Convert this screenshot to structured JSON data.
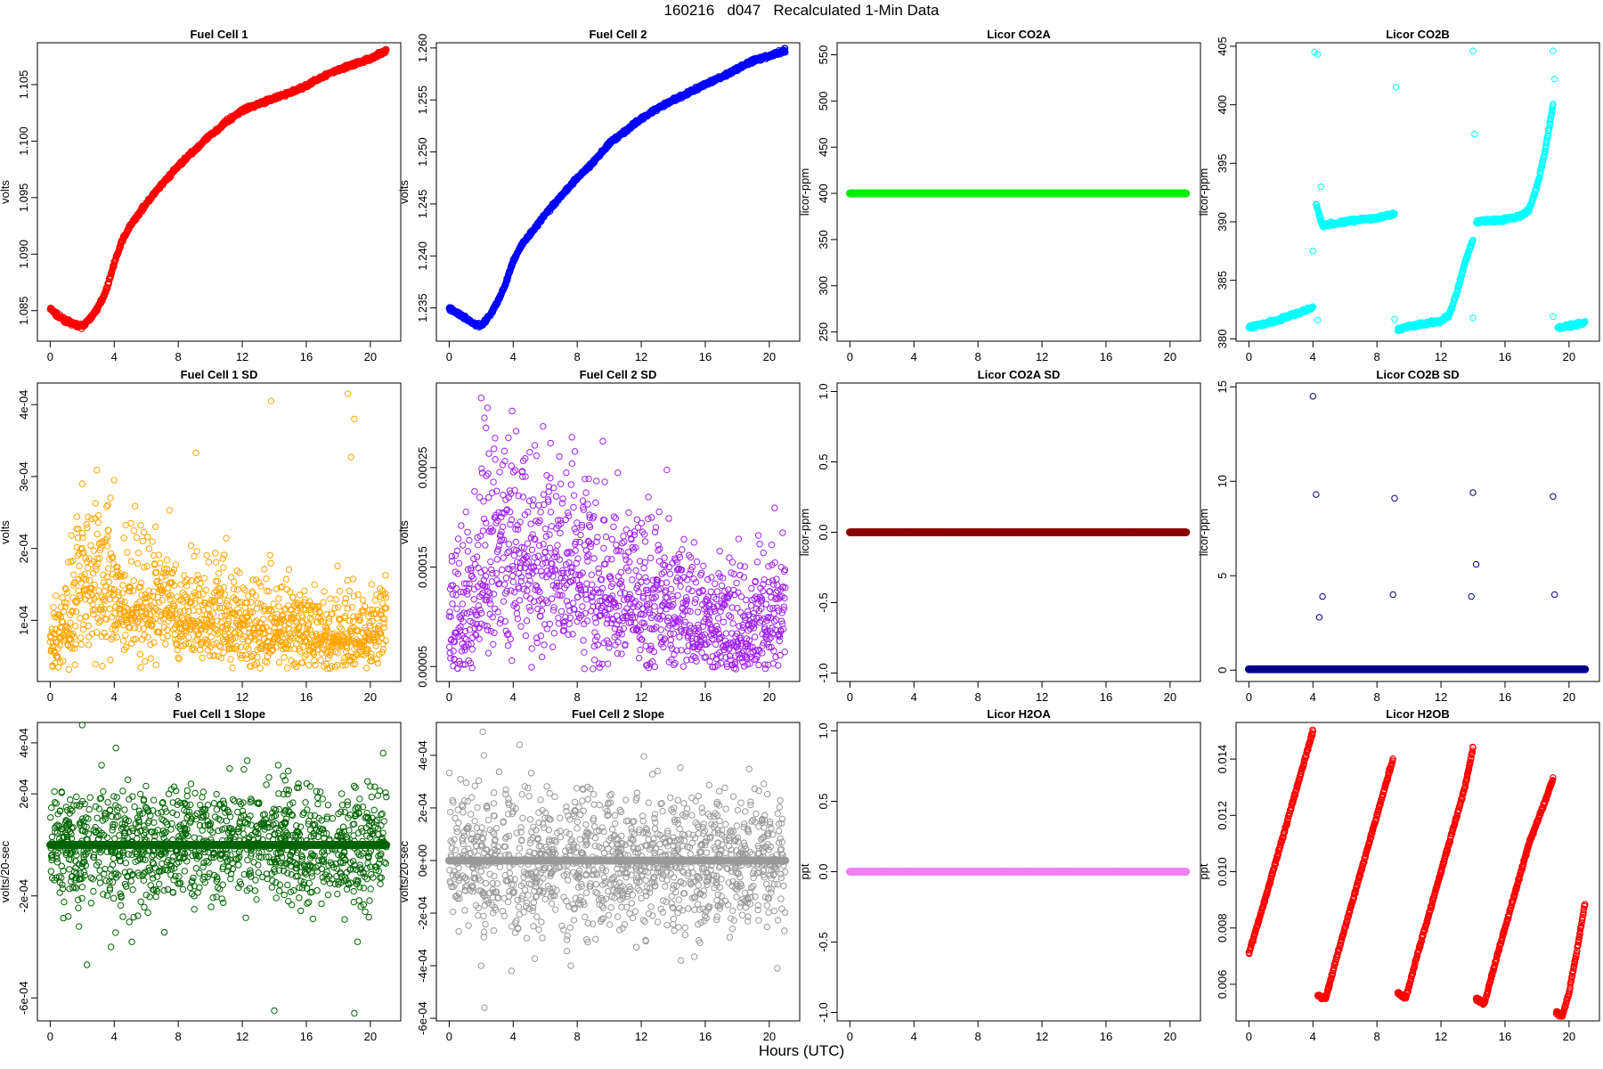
{
  "figure": {
    "title": "160216   d047   Recalculated 1-Min Data",
    "xlabel": "Hours (UTC)"
  },
  "chart_data": [
    {
      "type": "scatter",
      "title": "Fuel Cell 1",
      "ylabel": "volts",
      "color": "#ff0000",
      "xlim": [
        -0.8,
        21.9
      ],
      "ylim": [
        1.0823,
        1.1087
      ],
      "xticks": [
        0,
        4,
        8,
        12,
        16,
        20
      ],
      "yticks": [
        "1.085",
        "1.090",
        "1.095",
        "1.100",
        "1.105"
      ],
      "ytick_values": [
        1.085,
        1.09,
        1.095,
        1.1,
        1.105
      ],
      "series": [
        {
          "x": [
            0,
            0.5,
            1,
            1.5,
            2,
            2.5,
            3,
            3.5,
            4,
            4.5,
            5,
            6,
            7,
            8,
            9,
            10,
            11,
            12,
            13,
            14,
            15,
            16,
            17,
            18,
            19,
            20,
            21
          ],
          "y": [
            1.0852,
            1.0845,
            1.0841,
            1.0838,
            1.0836,
            1.0843,
            1.0853,
            1.0868,
            1.0892,
            1.0912,
            1.0925,
            1.0945,
            1.0962,
            1.0978,
            1.0992,
            1.1005,
            1.1017,
            1.1027,
            1.1033,
            1.1038,
            1.1043,
            1.1049,
            1.1057,
            1.1063,
            1.1068,
            1.1073,
            1.108
          ]
        }
      ]
    },
    {
      "type": "scatter",
      "title": "Fuel Cell 2",
      "ylabel": "volts",
      "color": "#0000ff",
      "xlim": [
        -0.8,
        21.9
      ],
      "ylim": [
        1.2318,
        1.2605
      ],
      "xticks": [
        0,
        4,
        8,
        12,
        16,
        20
      ],
      "yticks": [
        "1.235",
        "1.240",
        "1.245",
        "1.250",
        "1.255",
        "1.260"
      ],
      "ytick_values": [
        1.235,
        1.24,
        1.245,
        1.25,
        1.255,
        1.26
      ],
      "series": [
        {
          "x": [
            0,
            0.5,
            1,
            1.5,
            2,
            2.5,
            3,
            3.5,
            4,
            4.5,
            5,
            6,
            7,
            8,
            9,
            10,
            11,
            12,
            13,
            14,
            15,
            16,
            17,
            18,
            19,
            20,
            21
          ],
          "y": [
            1.235,
            1.2345,
            1.234,
            1.2335,
            1.2333,
            1.2342,
            1.2355,
            1.2372,
            1.2395,
            1.241,
            1.242,
            1.244,
            1.2458,
            1.2475,
            1.249,
            1.2508,
            1.252,
            1.2532,
            1.2542,
            1.255,
            1.2557,
            1.2565,
            1.2572,
            1.258,
            1.2588,
            1.2592,
            1.2598
          ]
        }
      ]
    },
    {
      "type": "scatter",
      "title": "Licor CO2A",
      "ylabel": "licor-ppm",
      "color": "#00ee00",
      "xlim": [
        -0.8,
        21.9
      ],
      "ylim": [
        240,
        563
      ],
      "xticks": [
        0,
        4,
        8,
        12,
        16,
        20
      ],
      "yticks": [
        "250",
        "300",
        "350",
        "400",
        "450",
        "500",
        "550"
      ],
      "ytick_values": [
        250,
        300,
        350,
        400,
        450,
        500,
        550
      ],
      "series": [
        {
          "x": [
            0,
            21
          ],
          "y": [
            400,
            400
          ]
        }
      ]
    },
    {
      "type": "scatter",
      "title": "Licor CO2B",
      "ylabel": "licor-ppm",
      "color": "#00ffff",
      "xlim": [
        -0.8,
        21.9
      ],
      "ylim": [
        379.8,
        405.3
      ],
      "xticks": [
        0,
        4,
        8,
        12,
        16,
        20
      ],
      "yticks": [
        "380",
        "385",
        "390",
        "395",
        "400",
        "405"
      ],
      "ytick_values": [
        380,
        385,
        390,
        395,
        400,
        405
      ],
      "series": [
        {
          "name": "",
          "x": [
            0,
            1,
            2,
            3,
            4
          ],
          "y": [
            381,
            381.3,
            381.7,
            382.2,
            382.7
          ]
        },
        {
          "name": "",
          "x": [
            4.2,
            4.6,
            5,
            6,
            7,
            8,
            9.1
          ],
          "y": [
            391.5,
            389.7,
            389.8,
            390,
            390.2,
            390.3,
            390.7
          ]
        },
        {
          "name": "",
          "x": [
            9.3,
            10,
            11,
            12,
            12.5,
            13,
            13.5,
            14
          ],
          "y": [
            380.8,
            381.1,
            381.3,
            381.5,
            382,
            384,
            386.5,
            388.5
          ]
        },
        {
          "name": "",
          "x": [
            14.2,
            15,
            16,
            17,
            17.5,
            18,
            18.5,
            19
          ],
          "y": [
            390,
            390.1,
            390.2,
            390.5,
            391,
            393,
            396,
            400
          ]
        },
        {
          "name": "",
          "x": [
            19.3,
            20,
            21
          ],
          "y": [
            380.9,
            381.1,
            381.4
          ]
        },
        {
          "name": "",
          "x": [
            4.1,
            4.3,
            4.5,
            4.0,
            9.2,
            14,
            14.1,
            19,
            19.1,
            4.3,
            9.1,
            14.0,
            19.0
          ],
          "y": [
            404.5,
            404.3,
            393,
            387.5,
            401.5,
            404.6,
            397.5,
            404.6,
            402.2,
            381.6,
            381.7,
            381.8,
            381.9
          ]
        }
      ]
    },
    {
      "type": "scatter",
      "title": "Fuel Cell 1 SD",
      "ylabel": "volts",
      "color": "#ffa500",
      "xlim": [
        -0.8,
        21.9
      ],
      "ylim": [
        1.5e-05,
        0.00043
      ],
      "xticks": [
        0,
        4,
        8,
        12,
        16,
        20
      ],
      "yticks": [
        "1e-04",
        "2e-04",
        "3e-04",
        "4e-04"
      ],
      "ytick_values": [
        0.0001,
        0.0002,
        0.0003,
        0.0004
      ],
      "series": [
        {
          "x": [
            0,
            1,
            2,
            3,
            4,
            6,
            8,
            10,
            12,
            14,
            16,
            18,
            19,
            20,
            21
          ],
          "y": [
            6e-05,
            9e-05,
            0.00015,
            0.00014,
            0.00013,
            0.00012,
            0.00011,
            0.0001,
            9e-05,
            9e-05,
            8e-05,
            8e-05,
            7e-05,
            8e-05,
            9e-05
          ]
        },
        {
          "name": "",
          "x": [
            2.0,
            4.0,
            9.1,
            13.8,
            18.6,
            19.0,
            18.8
          ],
          "y": [
            0.00029,
            0.000295,
            0.000333,
            0.000405,
            0.000415,
            0.00038,
            0.000327
          ]
        }
      ]
    },
    {
      "type": "scatter",
      "title": "Fuel Cell 2 SD",
      "ylabel": "volts",
      "color": "#a020f0",
      "xlim": [
        -0.8,
        21.9
      ],
      "ylim": [
        3.5e-05,
        0.000335
      ],
      "xticks": [
        0,
        4,
        8,
        12,
        16,
        20
      ],
      "yticks": [
        "0.00005",
        "0.00015",
        "0.00025"
      ],
      "ytick_values": [
        5e-05,
        0.00015,
        0.00025
      ],
      "series": [
        {
          "x": [
            0,
            1,
            2,
            3,
            4,
            6,
            8,
            10,
            12,
            14,
            16,
            18,
            20,
            21
          ],
          "y": [
            8e-05,
            0.0001,
            0.00013,
            0.00015,
            0.00016,
            0.00015,
            0.00014,
            0.00012,
            0.00011,
            0.0001,
            9e-05,
            8e-05,
            9e-05,
            0.0001
          ]
        },
        {
          "name": "",
          "x": [
            2.0,
            2.2,
            2.4,
            3.7,
            2.3
          ],
          "y": [
            0.00032,
            0.0003,
            0.00031,
            0.00028,
            0.00029
          ]
        }
      ]
    },
    {
      "type": "scatter",
      "title": "Licor CO2A SD",
      "ylabel": "licor-ppm",
      "color": "#8b0000",
      "xlim": [
        -0.8,
        21.9
      ],
      "ylim": [
        -1.06,
        1.06
      ],
      "xticks": [
        0,
        4,
        8,
        12,
        16,
        20
      ],
      "yticks": [
        "-1.0",
        "-0.5",
        "0.0",
        "0.5",
        "1.0"
      ],
      "ytick_values": [
        -1,
        -0.5,
        0,
        0.5,
        1
      ],
      "series": [
        {
          "x": [
            0,
            21
          ],
          "y": [
            0,
            0
          ]
        }
      ]
    },
    {
      "type": "scatter",
      "title": "Licor CO2B SD",
      "ylabel": "licor-ppm",
      "color": "#00008b",
      "xlim": [
        -0.8,
        21.9
      ],
      "ylim": [
        -0.6,
        15.2
      ],
      "xticks": [
        0,
        4,
        8,
        12,
        16,
        20
      ],
      "yticks": [
        "0",
        "5",
        "10",
        "15"
      ],
      "ytick_values": [
        0,
        5,
        10,
        15
      ],
      "series": [
        {
          "x": [
            0,
            21
          ],
          "y": [
            0.05,
            0.05
          ]
        },
        {
          "name": "",
          "x": [
            4.0,
            4.2,
            4.6,
            4.4,
            9.1,
            9.0,
            14.0,
            14.2,
            13.9,
            19.0,
            19.1
          ],
          "y": [
            14.5,
            9.3,
            3.9,
            2.8,
            9.1,
            4.0,
            9.4,
            5.6,
            3.9,
            9.2,
            4.0
          ]
        }
      ]
    },
    {
      "type": "scatter",
      "title": "Fuel Cell 1 Slope",
      "ylabel": "volts/20-sec",
      "color": "#006400",
      "xlim": [
        -0.8,
        21.9
      ],
      "ylim": [
        -0.00069,
        0.00048
      ],
      "xticks": [
        0,
        4,
        8,
        12,
        16,
        20
      ],
      "yticks": [
        "-6e-04",
        "-2e-04",
        "2e-04",
        "4e-04"
      ],
      "ytick_values": [
        -0.0006,
        -0.0002,
        0.0002,
        0.0004
      ],
      "series": [
        {
          "x": [
            0,
            21
          ],
          "y": [
            0,
            0
          ]
        },
        {
          "name": "",
          "x": [
            2.0,
            4.1,
            2.3,
            1.8,
            5.1,
            3.8,
            14.0,
            19.0,
            19.2,
            20.8
          ],
          "y": [
            0.00047,
            0.00038,
            -0.00047,
            -0.00032,
            -0.00038,
            -0.0004,
            -0.00065,
            -0.00066,
            -0.00038,
            0.00036
          ]
        }
      ]
    },
    {
      "type": "scatter",
      "title": "Fuel Cell 2 Slope",
      "ylabel": "volts/20-sec",
      "color": "#999999",
      "xlim": [
        -0.8,
        21.9
      ],
      "ylim": [
        -0.00061,
        0.000525
      ],
      "xticks": [
        0,
        4,
        8,
        12,
        16,
        20
      ],
      "yticks": [
        "-6e-04",
        "-4e-04",
        "-2e-04",
        "0e+00",
        "2e-04",
        "4e-04"
      ],
      "ytick_values": [
        -0.0006,
        -0.0004,
        -0.0002,
        0,
        0.0002,
        0.0004
      ],
      "series": [
        {
          "x": [
            0,
            21
          ],
          "y": [
            0,
            0
          ]
        },
        {
          "name": "",
          "x": [
            2.1,
            2.2,
            4.4,
            3.9,
            2.0,
            7.6,
            20.5
          ],
          "y": [
            0.00049,
            -0.00056,
            0.00044,
            -0.00042,
            -0.0004,
            -0.0004,
            -0.00041
          ]
        }
      ]
    },
    {
      "type": "scatter",
      "title": "Licor H2OA",
      "ylabel": "ppt",
      "color": "#ee82ee",
      "xlim": [
        -0.8,
        21.9
      ],
      "ylim": [
        -1.06,
        1.06
      ],
      "xticks": [
        0,
        4,
        8,
        12,
        16,
        20
      ],
      "yticks": [
        "-1.0",
        "-0.5",
        "0.0",
        "0.5",
        "1.0"
      ],
      "ytick_values": [
        -1,
        -0.5,
        0,
        0.5,
        1
      ],
      "series": [
        {
          "x": [
            0,
            21
          ],
          "y": [
            0,
            0
          ]
        }
      ]
    },
    {
      "type": "scatter",
      "title": "Licor H2OB",
      "ylabel": "ppt",
      "color": "#ff0000",
      "xlim": [
        -0.8,
        21.9
      ],
      "ylim": [
        0.0047,
        0.0153
      ],
      "xticks": [
        0,
        4,
        8,
        12,
        16,
        20
      ],
      "yticks": [
        "0.006",
        "0.008",
        "0.010",
        "0.012",
        "0.014"
      ],
      "ytick_values": [
        0.006,
        0.008,
        0.01,
        0.012,
        0.014
      ],
      "series": [
        {
          "name": "",
          "x": [
            0,
            1,
            2,
            3,
            4
          ],
          "y": [
            0.0071,
            0.009,
            0.011,
            0.013,
            0.015
          ]
        },
        {
          "name": "",
          "x": [
            4.3,
            4.8,
            5.5,
            6.5,
            7.5,
            8.5,
            9
          ],
          "y": [
            0.0056,
            0.0055,
            0.007,
            0.009,
            0.011,
            0.013,
            0.014
          ]
        },
        {
          "name": "",
          "x": [
            9.3,
            9.8,
            10.5,
            11.5,
            12.5,
            13.5,
            14
          ],
          "y": [
            0.0057,
            0.0055,
            0.007,
            0.009,
            0.011,
            0.013,
            0.0144
          ]
        },
        {
          "name": "",
          "x": [
            14.2,
            14.7,
            15.5,
            16.5,
            17.5,
            18.5,
            19
          ],
          "y": [
            0.0055,
            0.0053,
            0.007,
            0.009,
            0.011,
            0.0125,
            0.0133
          ]
        },
        {
          "name": "",
          "x": [
            19.2,
            19.6,
            20,
            20.5,
            21
          ],
          "y": [
            0.005,
            0.0049,
            0.0057,
            0.0072,
            0.0089
          ]
        }
      ]
    }
  ]
}
